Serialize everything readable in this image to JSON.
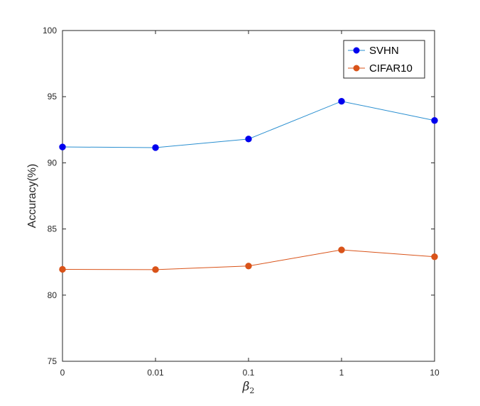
{
  "chart_data": {
    "type": "line",
    "categories": [
      "0",
      "0.01",
      "0.1",
      "1",
      "10"
    ],
    "ylabel": "Accuracy(%)",
    "xlabel_base": "β",
    "xlabel_sub": "2",
    "ylim": [
      75,
      100
    ],
    "yticks": [
      75,
      80,
      85,
      90,
      95,
      100
    ],
    "grid": false,
    "legend_position": "top-right",
    "series": [
      {
        "name": "SVHN",
        "color": "#0000ee",
        "line_color": "#2a8fd0",
        "values": [
          91.2,
          91.15,
          91.8,
          94.65,
          93.2
        ]
      },
      {
        "name": "CIFAR10",
        "color": "#d95319",
        "line_color": "#d95319",
        "values": [
          81.95,
          81.93,
          82.2,
          83.42,
          82.9
        ]
      }
    ]
  }
}
